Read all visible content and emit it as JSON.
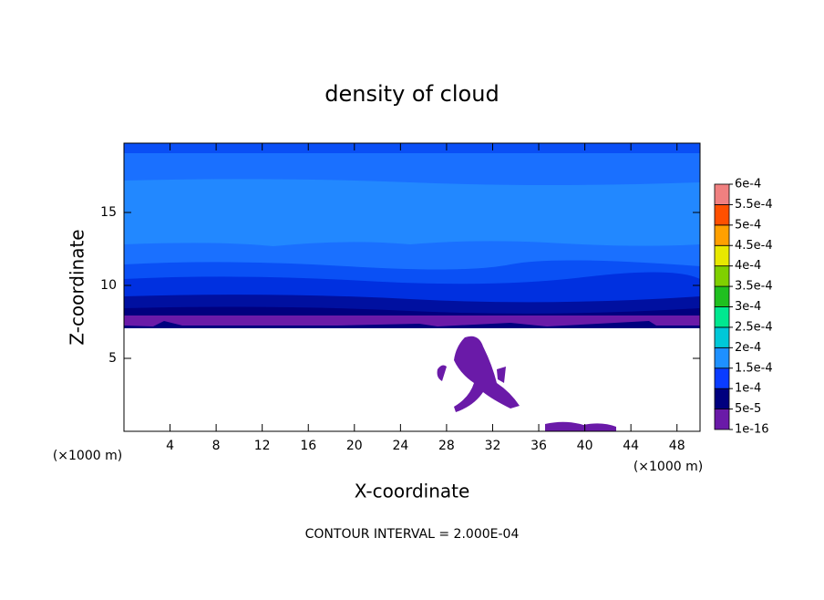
{
  "chart_data": {
    "type": "contour",
    "title": "density of cloud",
    "x_label": "X-coordinate",
    "y_label": "Z-coordinate",
    "x_unit": "(×1000 m)",
    "y_unit": "(×1000 m)",
    "footer": "CONTOUR INTERVAL = 2.000E-04",
    "xlim": [
      0,
      50
    ],
    "xticks": [
      4,
      8,
      12,
      16,
      20,
      24,
      28,
      32,
      36,
      40,
      44,
      48
    ],
    "ylim": [
      0,
      19.75
    ],
    "yticks": [
      5,
      10,
      15
    ],
    "colorbar": {
      "ticks": [
        {
          "value": 1e-16,
          "label": "1e-16"
        },
        {
          "value": 5e-05,
          "label": "5e-5"
        },
        {
          "value": 0.0001,
          "label": "1e-4"
        },
        {
          "value": 0.00015,
          "label": "1.5e-4"
        },
        {
          "value": 0.0002,
          "label": "2e-4"
        },
        {
          "value": 0.00025,
          "label": "2.5e-4"
        },
        {
          "value": 0.0003,
          "label": "3e-4"
        },
        {
          "value": 0.00035,
          "label": "3.5e-4"
        },
        {
          "value": 0.0004,
          "label": "4e-4"
        },
        {
          "value": 0.00045,
          "label": "4.5e-4"
        },
        {
          "value": 0.0005,
          "label": "5e-4"
        },
        {
          "value": 0.00055,
          "label": "5.5e-4"
        },
        {
          "value": 0.0006,
          "label": "6e-4"
        }
      ],
      "colors": [
        "#6a1aa8",
        "#00007f",
        "#0a3cff",
        "#1e90ff",
        "#00c8d8",
        "#00e890",
        "#20c020",
        "#80d000",
        "#e8e800",
        "#ffa000",
        "#ff5000",
        "#f08080"
      ]
    }
  }
}
